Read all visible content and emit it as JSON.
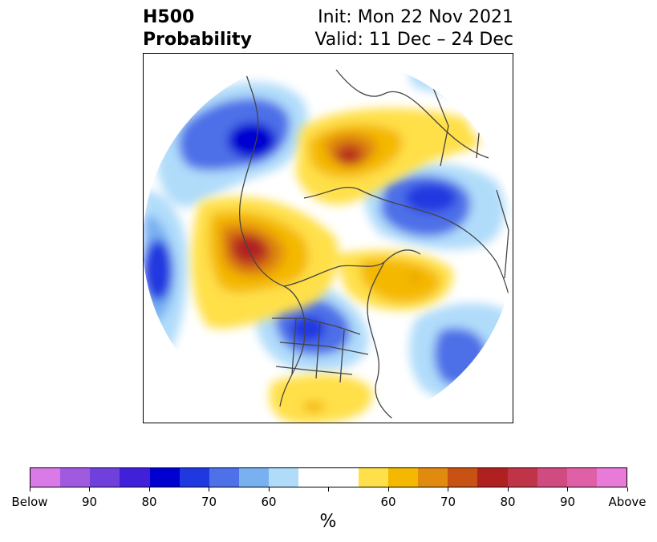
{
  "title": {
    "left_line1": "H500",
    "left_line2": "Probability",
    "right_line1": "Init: Mon 22 Nov 2021",
    "right_line2": "Valid: 11 Dec – 24 Dec"
  },
  "colorbar": {
    "colors": [
      "#d97ae8",
      "#a05ae0",
      "#7040dc",
      "#4020d8",
      "#0000d0",
      "#2038e0",
      "#4e70e8",
      "#78b0f0",
      "#b0dcfa",
      "#ffffff",
      "#ffffff",
      "#ffe04a",
      "#f4b800",
      "#e08a10",
      "#c85214",
      "#b02020",
      "#c03448",
      "#d04c80",
      "#e060a8",
      "#e87ad8"
    ],
    "tick_labels": [
      "Below",
      "90",
      "80",
      "70",
      "60",
      "60",
      "70",
      "80",
      "90",
      "Above"
    ],
    "unit": "%"
  },
  "legend_mapping": {
    "below_colors": "blue shades = below-normal 500 hPa height probability",
    "above_colors": "yellow/orange/red shades = above-normal 500 hPa height probability"
  }
}
